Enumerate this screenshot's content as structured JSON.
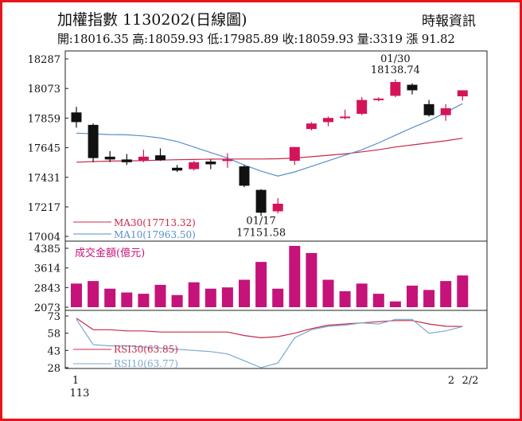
{
  "header": {
    "title": "加權指數 1130202(日線圖)",
    "source": "時報資訊",
    "quote": "開:18016.35 高:18059.93 低:17985.89 收:18059.93 量:3319 漲 91.82"
  },
  "chart_data": [
    {
      "type": "candlestick",
      "ylim": [
        17004,
        18287
      ],
      "yticks": [
        "18287",
        "18073",
        "17859",
        "17645",
        "17431",
        "17217",
        "17004"
      ],
      "colors": {
        "up": "#d4145a",
        "down": "#111111",
        "ma30": "#c8284a",
        "ma10": "#5a8fc8"
      },
      "candles": [
        {
          "o": 17900,
          "h": 17940,
          "l": 17790,
          "c": 17830
        },
        {
          "o": 17810,
          "h": 17820,
          "l": 17540,
          "c": 17570
        },
        {
          "o": 17580,
          "h": 17620,
          "l": 17540,
          "c": 17560
        },
        {
          "o": 17560,
          "h": 17600,
          "l": 17520,
          "c": 17540
        },
        {
          "o": 17550,
          "h": 17630,
          "l": 17540,
          "c": 17580
        },
        {
          "o": 17590,
          "h": 17640,
          "l": 17550,
          "c": 17555
        },
        {
          "o": 17500,
          "h": 17520,
          "l": 17470,
          "c": 17480
        },
        {
          "o": 17490,
          "h": 17550,
          "l": 17480,
          "c": 17540
        },
        {
          "o": 17545,
          "h": 17560,
          "l": 17490,
          "c": 17525
        },
        {
          "o": 17550,
          "h": 17605,
          "l": 17500,
          "c": 17560
        },
        {
          "o": 17510,
          "h": 17520,
          "l": 17360,
          "c": 17370
        },
        {
          "o": 17340,
          "h": 17345,
          "l": 17151.58,
          "c": 17175
        },
        {
          "o": 17185,
          "h": 17280,
          "l": 17170,
          "c": 17240
        },
        {
          "o": 17550,
          "h": 17650,
          "l": 17520,
          "c": 17650
        },
        {
          "o": 17780,
          "h": 17830,
          "l": 17770,
          "c": 17820
        },
        {
          "o": 17830,
          "h": 17870,
          "l": 17800,
          "c": 17860
        },
        {
          "o": 17860,
          "h": 17920,
          "l": 17850,
          "c": 17870
        },
        {
          "o": 17890,
          "h": 18010,
          "l": 17880,
          "c": 17990
        },
        {
          "o": 17995,
          "h": 18010,
          "l": 17980,
          "c": 18000
        },
        {
          "o": 18020,
          "h": 18138.74,
          "l": 18010,
          "c": 18120
        },
        {
          "o": 18100,
          "h": 18110,
          "l": 18030,
          "c": 18060
        },
        {
          "o": 17960,
          "h": 17990,
          "l": 17870,
          "c": 17880
        },
        {
          "o": 17880,
          "h": 17960,
          "l": 17840,
          "c": 17930
        },
        {
          "o": 18016.35,
          "h": 18059.93,
          "l": 17985.89,
          "c": 18059.93
        }
      ],
      "ma30": [
        17540,
        17545,
        17548,
        17550,
        17552,
        17555,
        17558,
        17560,
        17562,
        17563,
        17563,
        17563,
        17565,
        17570,
        17580,
        17590,
        17600,
        17615,
        17630,
        17650,
        17665,
        17680,
        17695,
        17713.32
      ],
      "ma10": [
        17750,
        17745,
        17740,
        17738,
        17730,
        17715,
        17690,
        17650,
        17610,
        17570,
        17520,
        17475,
        17440,
        17470,
        17510,
        17550,
        17590,
        17630,
        17680,
        17735,
        17790,
        17840,
        17900,
        17963.5
      ],
      "annotations": {
        "high_date": "01/30",
        "high_value": "18138.74",
        "low_date": "01/17",
        "low_value": "17151.58"
      },
      "legend": {
        "ma30": "MA30(17713.32)",
        "ma10": "MA10(17963.50)"
      }
    },
    {
      "type": "bar",
      "title": "成交金額(億元)",
      "ylim": [
        2073,
        4385
      ],
      "yticks": [
        "4385",
        "3614",
        "2843",
        "2073"
      ],
      "color": "#c5137a",
      "values": [
        3000,
        3100,
        2800,
        2650,
        2600,
        2950,
        2550,
        3050,
        2800,
        2850,
        3150,
        3850,
        2800,
        4480,
        4200,
        3150,
        2700,
        3000,
        2600,
        2300,
        2920,
        2750,
        3100,
        3319
      ]
    },
    {
      "type": "line",
      "ylim": [
        28,
        73
      ],
      "yticks": [
        "73",
        "58",
        "43",
        "28"
      ],
      "series": [
        {
          "name": "RSI30(63.85)",
          "color": "#c8284a",
          "values": [
            71,
            61,
            61,
            60,
            60,
            59,
            59,
            59,
            59,
            59,
            56,
            54,
            55,
            58,
            62,
            65,
            66,
            67,
            68,
            69,
            69,
            66,
            64,
            63.85
          ]
        },
        {
          "name": "RSI10(63.77)",
          "color": "#7aaad0",
          "values": [
            70,
            48,
            47,
            47,
            46,
            45,
            44,
            43,
            42,
            40,
            34,
            28,
            32,
            54,
            61,
            64,
            65,
            67,
            66,
            70,
            70,
            58,
            60,
            63.77
          ]
        }
      ]
    }
  ],
  "x_axis": {
    "left_day": "1",
    "left_year": "113",
    "right_labels": [
      "2",
      "2/2"
    ]
  }
}
